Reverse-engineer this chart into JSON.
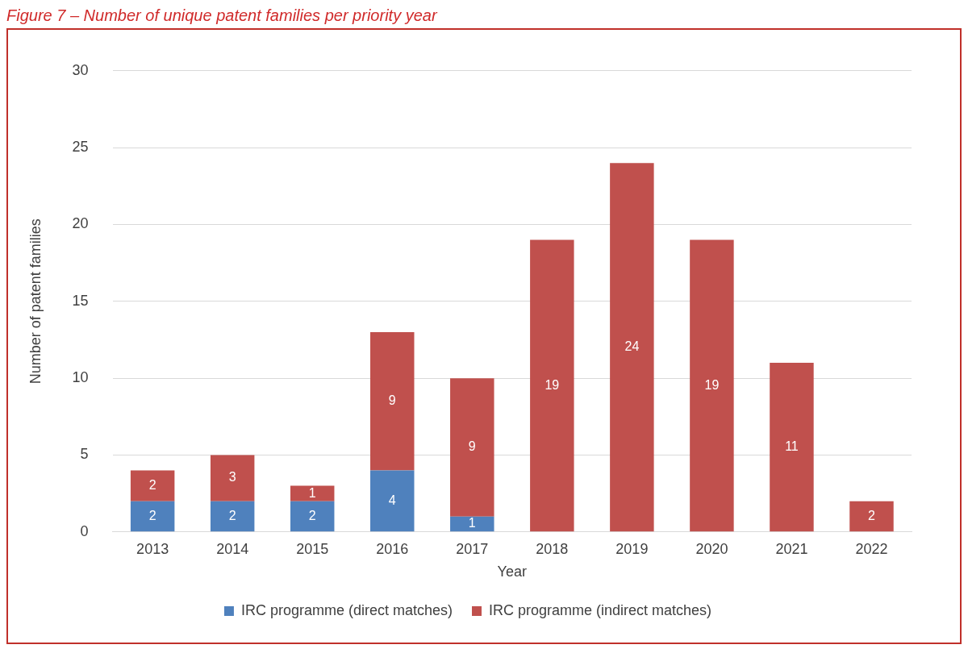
{
  "chart_data": {
    "type": "bar",
    "title": "Figure 7 – Number of unique patent families per priority year",
    "xlabel": "Year",
    "ylabel": "Number of patent families",
    "categories": [
      "2013",
      "2014",
      "2015",
      "2016",
      "2017",
      "2018",
      "2019",
      "2020",
      "2021",
      "2022"
    ],
    "series": [
      {
        "name": "IRC programme (direct matches)",
        "color": "#4f81bd",
        "values": [
          2,
          2,
          2,
          4,
          1,
          null,
          null,
          null,
          null,
          null
        ]
      },
      {
        "name": "IRC programme (indirect matches)",
        "color": "#c0504d",
        "values": [
          2,
          3,
          1,
          9,
          9,
          19,
          24,
          19,
          11,
          2
        ]
      }
    ],
    "stacked": true,
    "ylim": [
      0,
      30
    ],
    "yticks": [
      0,
      5,
      10,
      15,
      20,
      25,
      30
    ],
    "grid": "y",
    "legend": "bottom",
    "data_labels": true
  }
}
